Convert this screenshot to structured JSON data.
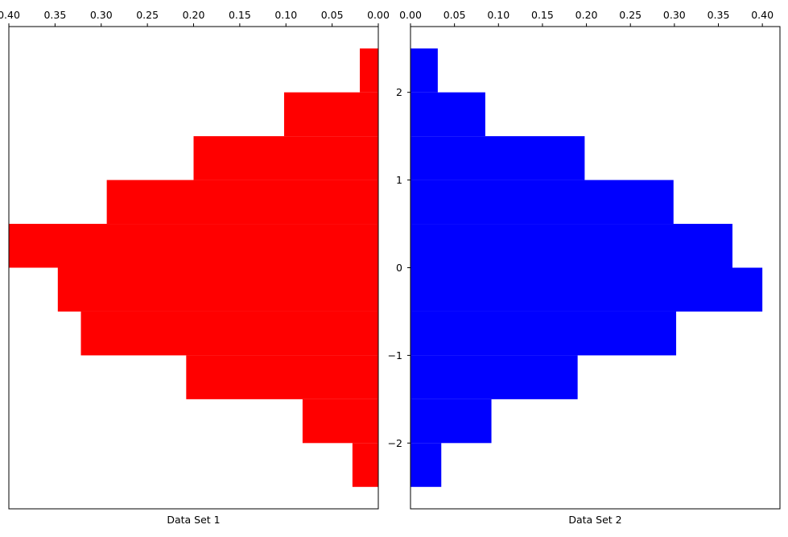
{
  "chart_data": [
    {
      "type": "bar",
      "orientation": "horizontal",
      "xaxis_position": "top",
      "xaxis_inverted": true,
      "xlabel": "Data Set 1",
      "xlim": [
        0.4,
        0.0
      ],
      "x_ticks": [
        "0.40",
        "0.35",
        "0.30",
        "0.25",
        "0.20",
        "0.15",
        "0.10",
        "0.05",
        "0.00"
      ],
      "y_ticks": [],
      "ylim": [
        -2.75,
        2.75
      ],
      "bar_color": "#ff0000",
      "bins": [
        {
          "y0": -2.5,
          "y1": -2.0,
          "value": 0.028
        },
        {
          "y0": -2.0,
          "y1": -1.5,
          "value": 0.082
        },
        {
          "y0": -1.5,
          "y1": -1.0,
          "value": 0.208
        },
        {
          "y0": -1.0,
          "y1": -0.5,
          "value": 0.322
        },
        {
          "y0": -0.5,
          "y1": 0.0,
          "value": 0.347
        },
        {
          "y0": 0.0,
          "y1": 0.5,
          "value": 0.4
        },
        {
          "y0": 0.5,
          "y1": 1.0,
          "value": 0.294
        },
        {
          "y0": 1.0,
          "y1": 1.5,
          "value": 0.2
        },
        {
          "y0": 1.5,
          "y1": 2.0,
          "value": 0.102
        },
        {
          "y0": 2.0,
          "y1": 2.5,
          "value": 0.02
        }
      ]
    },
    {
      "type": "bar",
      "orientation": "horizontal",
      "xaxis_position": "top",
      "xaxis_inverted": false,
      "xlabel": "Data Set 2",
      "xlim": [
        0.0,
        0.42
      ],
      "x_ticks": [
        "0.00",
        "0.05",
        "0.10",
        "0.15",
        "0.20",
        "0.25",
        "0.30",
        "0.35",
        "0.40"
      ],
      "y_ticks": [
        "−2",
        "−1",
        "0",
        "1",
        "2"
      ],
      "ylim": [
        -2.75,
        2.75
      ],
      "bar_color": "#0000ff",
      "bins": [
        {
          "y0": -2.5,
          "y1": -2.0,
          "value": 0.035
        },
        {
          "y0": -2.0,
          "y1": -1.5,
          "value": 0.092
        },
        {
          "y0": -1.5,
          "y1": -1.0,
          "value": 0.19
        },
        {
          "y0": -1.0,
          "y1": -0.5,
          "value": 0.302
        },
        {
          "y0": -0.5,
          "y1": 0.0,
          "value": 0.4
        },
        {
          "y0": 0.0,
          "y1": 0.5,
          "value": 0.366
        },
        {
          "y0": 0.5,
          "y1": 1.0,
          "value": 0.299
        },
        {
          "y0": 1.0,
          "y1": 1.5,
          "value": 0.198
        },
        {
          "y0": 1.5,
          "y1": 2.0,
          "value": 0.085
        },
        {
          "y0": 2.0,
          "y1": 2.5,
          "value": 0.031
        }
      ]
    }
  ]
}
